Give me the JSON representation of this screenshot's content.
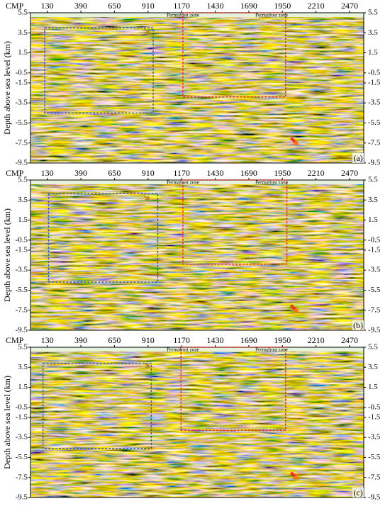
{
  "chart_data": [
    {
      "type": "seismic",
      "xlabel": "CMP",
      "ylabel": "Depth above sea level (km)",
      "panel_label": "(a)",
      "xlim": [
        0,
        2580
      ],
      "xticks": [
        130,
        390,
        650,
        910,
        1170,
        1430,
        1690,
        1950,
        2210,
        2470
      ],
      "ylim": [
        -9.5,
        5.5
      ],
      "yticks": [
        5.5,
        3.5,
        1.5,
        -0.5,
        -1.5,
        -3.5,
        -5.5,
        -7.5,
        -9.5
      ],
      "annotations": [
        "Permafrost zone",
        "Permafrost zone"
      ],
      "regions": [
        {
          "color": "#3a5fb0",
          "x": [
            110,
            950
          ],
          "y": [
            -4.5,
            4.0
          ]
        },
        {
          "color": "#e8322a",
          "x": [
            1180,
            1975
          ],
          "y": [
            -2.9,
            5.5
          ]
        }
      ]
    },
    {
      "type": "seismic",
      "xlabel": "CMP",
      "ylabel": "Depth above sea level (km)",
      "panel_label": "(b)",
      "xlim": [
        0,
        2580
      ],
      "xticks": [
        130,
        390,
        650,
        910,
        1170,
        1430,
        1690,
        1950,
        2210,
        2470
      ],
      "ylim": [
        -9.5,
        5.5
      ],
      "yticks": [
        5.5,
        3.5,
        1.5,
        -0.5,
        -1.5,
        -3.5,
        -5.5,
        -7.5,
        -9.5
      ],
      "annotations": [
        "Permafrost zone",
        "Permafrost zone"
      ],
      "regions": [
        {
          "color": "#3a5fb0",
          "x": [
            140,
            985
          ],
          "y": [
            -4.7,
            4.15
          ]
        },
        {
          "color": "#e8322a",
          "x": [
            1180,
            1985
          ],
          "y": [
            -2.9,
            5.5
          ]
        }
      ]
    },
    {
      "type": "seismic",
      "xlabel": "CMP",
      "ylabel": "Depth above sea level (km)",
      "panel_label": "(c)",
      "xlim": [
        0,
        2580
      ],
      "xticks": [
        130,
        390,
        650,
        910,
        1170,
        1430,
        1690,
        1950,
        2210,
        2470
      ],
      "ylim": [
        -9.5,
        5.5
      ],
      "yticks": [
        5.5,
        3.5,
        1.5,
        -0.5,
        -1.5,
        -3.5,
        -5.5,
        -7.5,
        -9.5
      ],
      "annotations": [
        "Permafrost zone",
        "Permafrost zone"
      ],
      "regions": [
        {
          "color": "#3a5fb0",
          "x": [
            97,
            935
          ],
          "y": [
            -4.6,
            3.9
          ]
        },
        {
          "color": "#e8322a",
          "x": [
            1165,
            1975
          ],
          "y": [
            -2.8,
            5.5
          ]
        }
      ]
    }
  ]
}
